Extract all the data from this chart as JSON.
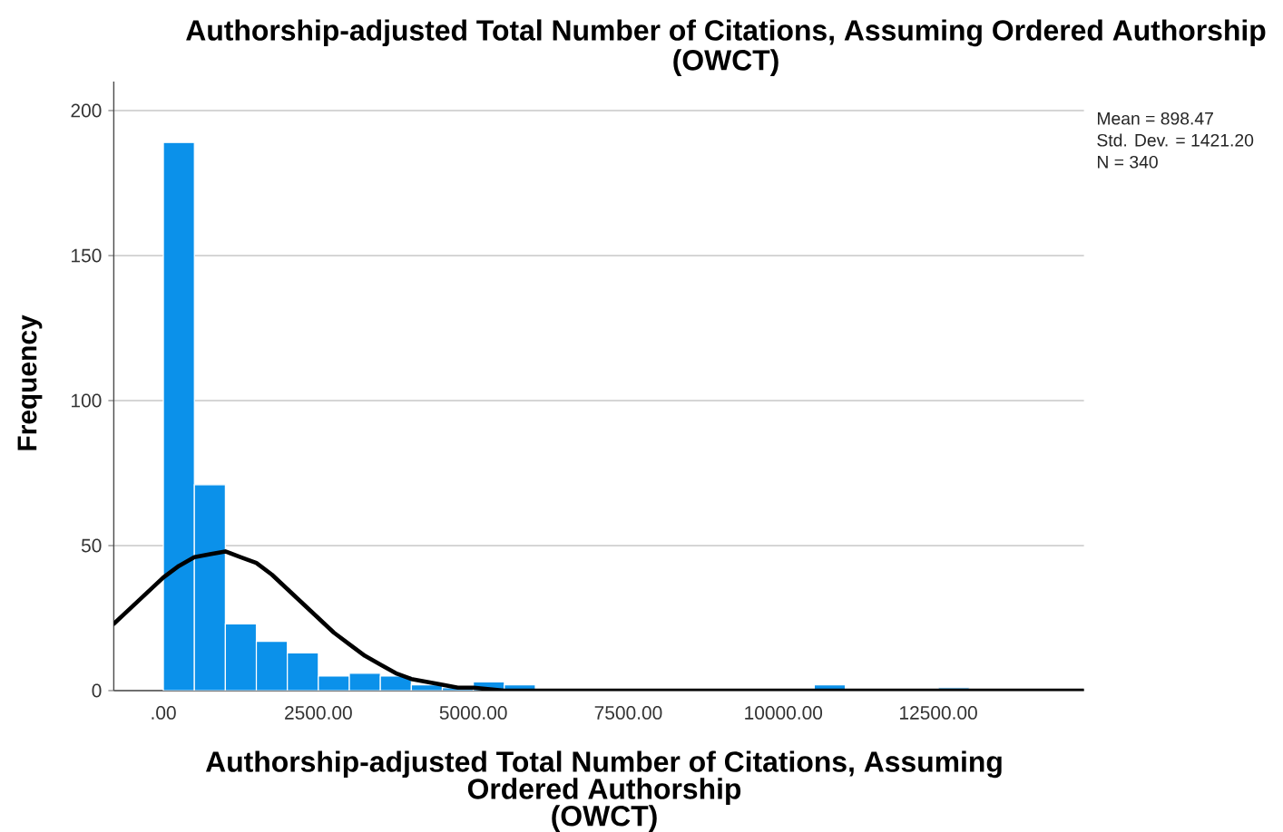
{
  "chart_data": {
    "type": "histogram",
    "title": "Authorship-adjusted Total Number of Citations,  Assuming Ordered Authorship\n(OWCT)",
    "xlabel": "Authorship-adjusted Total Number of Citations,  Assuming Ordered Authorship\n(OWCT)",
    "ylabel": "Frequency",
    "annotations": [
      "Mean = 898.47",
      "Std. Dev. = 1421.20",
      "N = 340"
    ],
    "bins": [
      0,
      500,
      1000,
      1500,
      2000,
      2500,
      3000,
      3500,
      4000,
      4500,
      5000,
      5500,
      6000,
      6500,
      7000,
      7500,
      8000,
      8500,
      9000,
      9500,
      10000,
      10500,
      11000,
      11500,
      12000,
      12500,
      13000
    ],
    "series": [
      {
        "color": "#0b91ea",
        "values": [
          189,
          71,
          23,
          17,
          13,
          5,
          6,
          5,
          2,
          1,
          3,
          2,
          0,
          0,
          0,
          0,
          0,
          0,
          0,
          0,
          0,
          2,
          0,
          0,
          0,
          1
        ]
      },
      {
        "type": "line",
        "color": "#000000",
        "x": [
          -800,
          -500,
          -250,
          0,
          250,
          500,
          750,
          1000,
          1250,
          1500,
          1750,
          2000,
          2250,
          2500,
          2750,
          3000,
          3250,
          3500,
          3750,
          4000,
          4250,
          4500,
          4750,
          5000,
          5500,
          14850
        ],
        "values": [
          23,
          29,
          34,
          39,
          43,
          46,
          47,
          48,
          46,
          44,
          40,
          35,
          30,
          25,
          20,
          16,
          12,
          9,
          6,
          4,
          3,
          2,
          1,
          1,
          0,
          0
        ]
      }
    ],
    "xlim": [
      -800,
      14850
    ],
    "ylim": [
      0,
      210
    ],
    "xticks": [
      {
        "value": 0,
        "label": ".00"
      },
      {
        "value": 2500,
        "label": "2500.00"
      },
      {
        "value": 5000,
        "label": "5000.00"
      },
      {
        "value": 7500,
        "label": "7500.00"
      },
      {
        "value": 10000,
        "label": "10000.00"
      },
      {
        "value": 12500,
        "label": "12500.00"
      }
    ],
    "yticks": [
      0,
      50,
      100,
      150,
      200
    ],
    "grid": "y"
  }
}
